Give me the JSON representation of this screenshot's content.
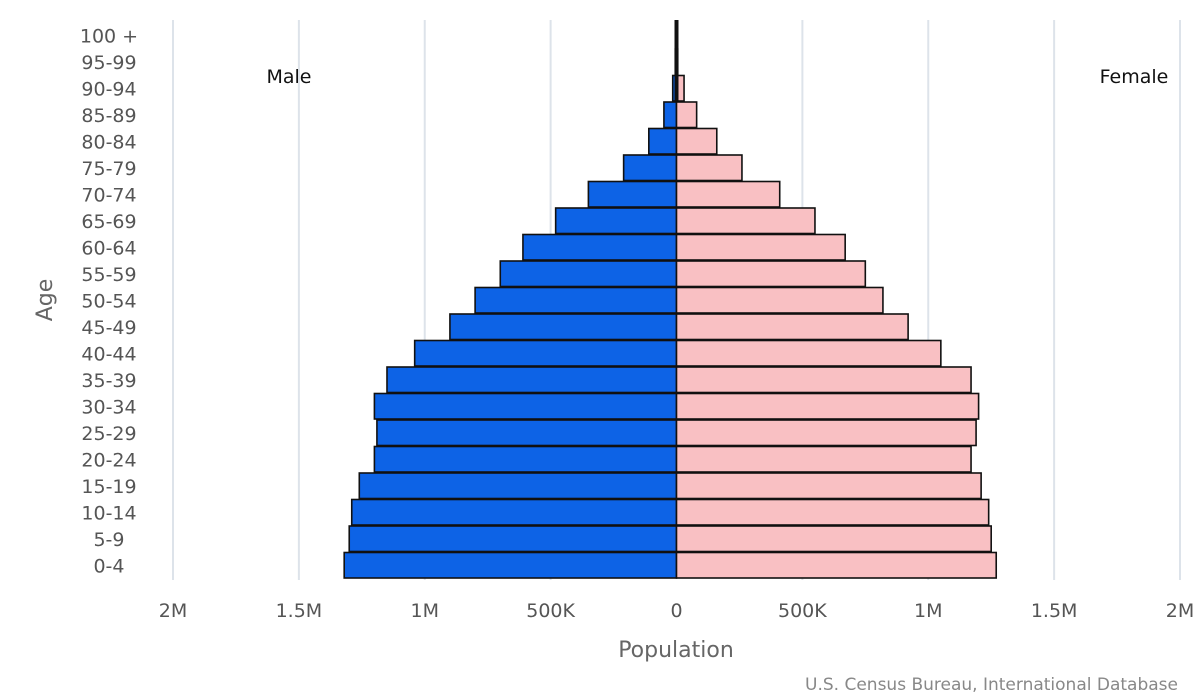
{
  "chart_data": {
    "type": "bar",
    "orientation": "horizontal",
    "xlabel": "Population",
    "ylabel": "Age",
    "side_labels": {
      "left": "Male",
      "right": "Female"
    },
    "source": "U.S. Census Bureau, International Database",
    "xlim": [
      -2000000,
      2000000
    ],
    "x_ticks": [
      {
        "value": -2000000,
        "label": "2M"
      },
      {
        "value": -1500000,
        "label": "1.5M"
      },
      {
        "value": -1000000,
        "label": "1M"
      },
      {
        "value": -500000,
        "label": "500K"
      },
      {
        "value": 0,
        "label": "0"
      },
      {
        "value": 500000,
        "label": "500K"
      },
      {
        "value": 1000000,
        "label": "1M"
      },
      {
        "value": 1500000,
        "label": "1.5M"
      },
      {
        "value": 2000000,
        "label": "2M"
      }
    ],
    "categories": [
      "0-4",
      "5-9",
      "10-14",
      "15-19",
      "20-24",
      "25-29",
      "30-34",
      "35-39",
      "40-44",
      "45-49",
      "50-54",
      "55-59",
      "60-64",
      "65-69",
      "70-74",
      "75-79",
      "80-84",
      "85-89",
      "90-94",
      "95-99",
      "100 +"
    ],
    "series": [
      {
        "name": "Male",
        "color": "#0d63e6",
        "values": [
          1320000,
          1300000,
          1290000,
          1260000,
          1200000,
          1190000,
          1200000,
          1150000,
          1040000,
          900000,
          800000,
          700000,
          610000,
          480000,
          350000,
          210000,
          110000,
          50000,
          15000,
          5000,
          1000
        ]
      },
      {
        "name": "Female",
        "color": "#f9c0c3",
        "values": [
          1270000,
          1250000,
          1240000,
          1210000,
          1170000,
          1190000,
          1200000,
          1170000,
          1050000,
          920000,
          820000,
          750000,
          670000,
          550000,
          410000,
          260000,
          160000,
          80000,
          30000,
          5000,
          1000
        ]
      }
    ],
    "grid": true,
    "legend": "none"
  }
}
